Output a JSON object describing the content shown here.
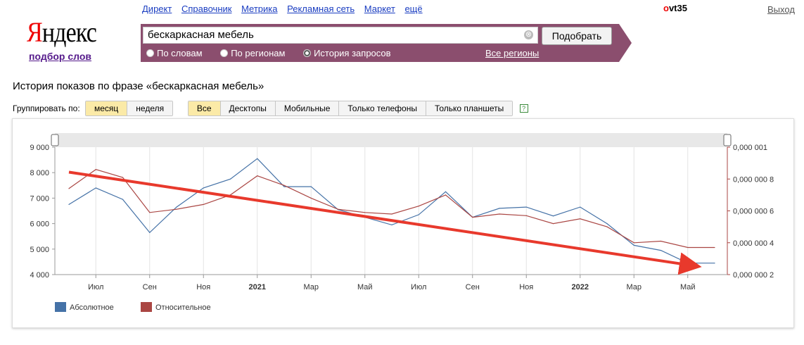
{
  "nav": {
    "links": [
      "Директ",
      "Справочник",
      "Метрика",
      "Рекламная сеть",
      "Маркет",
      "ещё"
    ]
  },
  "user": {
    "first": "o",
    "rest": "vt35",
    "logout": "Выход"
  },
  "logo": {
    "first": "Я",
    "rest": "ндекс",
    "sub": "подбор слов"
  },
  "search": {
    "value": "бескаркасная мебель",
    "clear": "⊗",
    "button": "Подобрать",
    "options": [
      "По словам",
      "По регионам",
      "История запросов"
    ],
    "selected_option": "История запросов",
    "regions": "Все регионы"
  },
  "page": {
    "title": "История показов по фразе «бескаркасная мебель»"
  },
  "grouping": {
    "label": "Группировать по:",
    "options": [
      "месяц",
      "неделя"
    ],
    "active": "месяц"
  },
  "devices": {
    "options": [
      "Все",
      "Десктопы",
      "Мобильные",
      "Только телефоны",
      "Только планшеты"
    ],
    "active": "Все",
    "help": "?"
  },
  "colors": {
    "absolute": "#4572a7",
    "relative": "#aa4643",
    "trend": "#e8392c",
    "accent": "#8b4e6e"
  },
  "chart_data": {
    "type": "line",
    "x": [
      "2020-05",
      "2020-06",
      "2020-07",
      "2020-08",
      "2020-09",
      "2020-10",
      "2020-11",
      "2020-12",
      "2021-01",
      "2021-02",
      "2021-03",
      "2021-04",
      "2021-05",
      "2021-06",
      "2021-07",
      "2021-08",
      "2021-09",
      "2021-10",
      "2021-11",
      "2021-12",
      "2022-01",
      "2022-02",
      "2022-03",
      "2022-04",
      "2022-05"
    ],
    "x_tick_labels": [
      {
        "x": "2020-06",
        "label": "Июл"
      },
      {
        "x": "2020-08",
        "label": "Сен"
      },
      {
        "x": "2020-10",
        "label": "Ноя"
      },
      {
        "x": "2020-12",
        "label": "2021",
        "bold": true
      },
      {
        "x": "2021-02",
        "label": "Мар"
      },
      {
        "x": "2021-04",
        "label": "Май"
      },
      {
        "x": "2021-06",
        "label": "Июл"
      },
      {
        "x": "2021-08",
        "label": "Сен"
      },
      {
        "x": "2021-10",
        "label": "Ноя"
      },
      {
        "x": "2021-12",
        "label": "2022",
        "bold": true
      },
      {
        "x": "2022-02",
        "label": "Мар"
      },
      {
        "x": "2022-04",
        "label": "Май"
      }
    ],
    "series": [
      {
        "name": "Абсолютное",
        "axis": "left",
        "values": [
          6750,
          7400,
          6950,
          5650,
          6650,
          7400,
          7750,
          8550,
          7450,
          7450,
          6550,
          6250,
          5950,
          6350,
          7250,
          6250,
          6600,
          6650,
          6300,
          6650,
          6000,
          5150,
          4950,
          4450,
          4450
        ]
      },
      {
        "name": "Относительное",
        "axis": "right",
        "values": [
          7.4,
          8.6,
          8.1,
          5.9,
          6.1,
          6.4,
          7.0,
          8.2,
          7.6,
          6.8,
          6.1,
          5.9,
          5.8,
          6.3,
          7.0,
          5.6,
          5.8,
          5.7,
          5.2,
          5.5,
          5.0,
          4.0,
          4.1,
          3.7,
          3.7
        ]
      }
    ],
    "y_left": {
      "ticks": [
        "4 000",
        "5 000",
        "6 000",
        "7 000",
        "8 000",
        "9 000"
      ],
      "ylim": [
        4000,
        9000
      ]
    },
    "y_right": {
      "ticks": [
        "0,000 000 2",
        "0,000 000 4",
        "0,000 000 6",
        "0,000 000 8",
        "0,000 001"
      ],
      "ylim": [
        2,
        10
      ]
    },
    "trend": {
      "from": [
        "2020-05",
        8020
      ],
      "to": [
        "2022-04",
        4350
      ]
    },
    "grid": true,
    "legend_position": "bottom-left"
  }
}
